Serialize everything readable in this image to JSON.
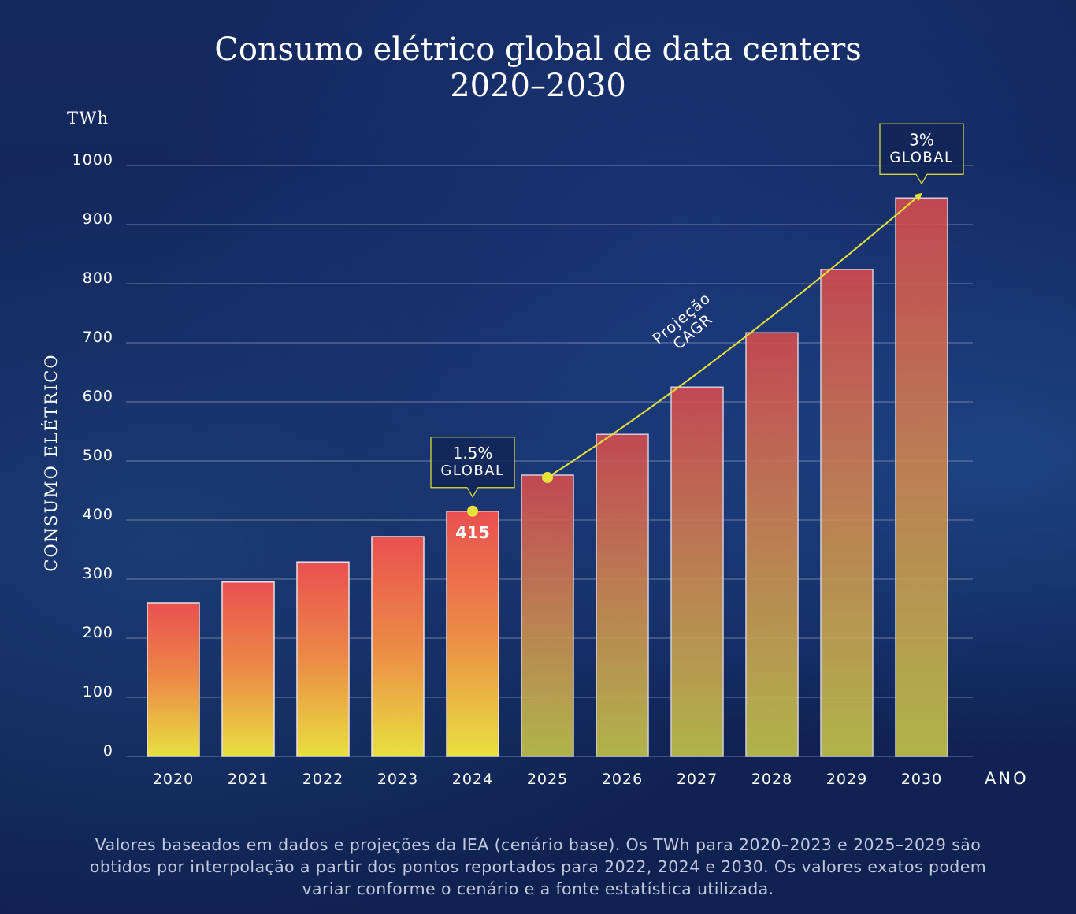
{
  "title_line1": "Consumo elétrico global de data centers",
  "title_line2": "2020–2030",
  "footnote": "Valores baseados em dados e projeções da IEA (cenário base). Os TWh para 2020–2023 e 2025–2029 são obtidos por interpolação a partir dos pontos reportados para 2022, 2024 e 2030. Os valores exatos podem variar conforme o cenário e a fonte estatística utilizada.",
  "chart_data": {
    "type": "bar",
    "title": "Consumo elétrico global de data centers 2020–2030",
    "xlabel": "ANO",
    "ylabel": "CONSUMO ELÉTRICO",
    "yunit": "TWh",
    "ylim": [
      0,
      1000
    ],
    "yticks": [
      0,
      100,
      200,
      300,
      400,
      500,
      600,
      700,
      800,
      900,
      1000
    ],
    "grid": true,
    "categories": [
      "2020",
      "2021",
      "2022",
      "2023",
      "2024",
      "2025",
      "2026",
      "2027",
      "2028",
      "2029",
      "2030"
    ],
    "values": [
      260,
      295,
      329,
      372,
      415,
      476,
      545,
      625,
      717,
      824,
      945
    ],
    "projected_from": "2025",
    "data_labels": [
      {
        "category": "2024",
        "text": "415"
      }
    ],
    "annotations": [
      {
        "category": "2024",
        "line1": "1.5%",
        "line2": "GLOBAL"
      },
      {
        "category": "2030",
        "line1": "3%",
        "line2": "GLOBAL"
      }
    ],
    "trend_label_line1": "Projeção",
    "trend_label_line2": "CAGR",
    "colors": {
      "bar_top": "#ea5050",
      "bar_bottom": "#e8e040",
      "accent": "#e6e337",
      "grid": "#8a97bd"
    }
  }
}
